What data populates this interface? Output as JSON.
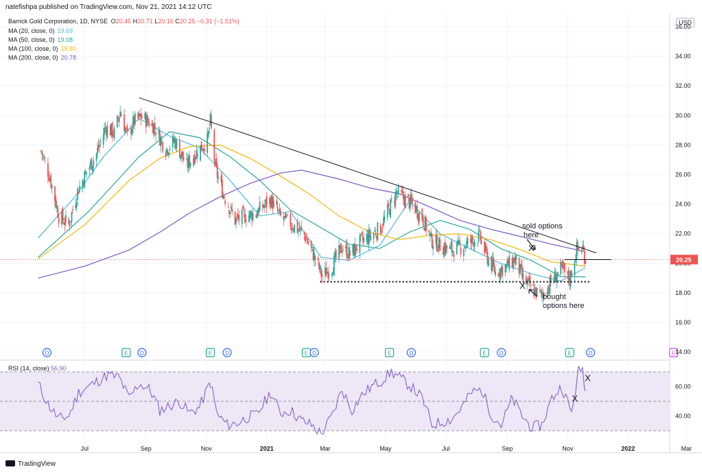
{
  "header": {
    "published": "natefishpa published on TradingView.com, Nov 21, 2021 14:12 UTC",
    "symbol": "Barrick Gold Corporation, 1D, NYSE",
    "ohlc": {
      "o_label": "O",
      "o": "20.45",
      "h_label": "H",
      "h": "20.71",
      "l_label": "L",
      "l": "20.15",
      "c_label": "C",
      "c": "20.25",
      "change": "−0.31 (−1.51%)"
    },
    "ma_lines": [
      {
        "label": "MA (20, close, 0)",
        "value": "19.69",
        "color": "#4cb6e3"
      },
      {
        "label": "MA (50, close, 0)",
        "value": "19.08",
        "color": "#26a69a"
      },
      {
        "label": "MA (100, close, 0)",
        "value": "19.80",
        "color": "#f5b700"
      },
      {
        "label": "MA (200, close, 0)",
        "value": "20.78",
        "color": "#7e57c2"
      }
    ]
  },
  "currency": "USD",
  "last_price": "20.25",
  "rsi_title": "RSI (14, close)",
  "rsi_value": "56.90",
  "footer": {
    "brand": "TradingView"
  },
  "colors": {
    "up": "#26a69a",
    "down": "#ef5350",
    "ma20": "#4cb6e3",
    "ma50": "#26a69a",
    "ma100": "#f5b700",
    "ma200": "#7e57c2",
    "rsi": "#7e57c2",
    "rsi_band": "#ede7f6",
    "price_tag": "#ef5350",
    "text_red": "#ef5350",
    "events_blue": "#2962ff",
    "events_green": "#26a69a",
    "events_pink": "#e040fb"
  },
  "annotations": {
    "sold": [
      "sold options",
      "here"
    ],
    "bought": [
      "bought",
      "options here"
    ],
    "x_mark": "X"
  },
  "chart_data": [
    {
      "type": "candlestick",
      "title": "Barrick Gold Corporation, 1D, NYSE",
      "x_ticks": [
        "Jul",
        "Sep",
        "Nov",
        "2021",
        "Mar",
        "May",
        "Jul",
        "Sep",
        "Nov",
        "2022",
        "Mar"
      ],
      "y_ticks": [
        "14.00",
        "16.00",
        "18.00",
        "20.00",
        "22.00",
        "24.00",
        "26.00",
        "28.00",
        "30.00",
        "32.00",
        "34.00",
        "36.00"
      ],
      "ylim": [
        14,
        36.4
      ],
      "close_path": [
        [
          "2020-05-18",
          27.6
        ],
        [
          "2020-05-27",
          25.8
        ],
        [
          "2020-06-05",
          23.2
        ],
        [
          "2020-06-15",
          22.6
        ],
        [
          "2020-06-24",
          24.9
        ],
        [
          "2020-07-03",
          26.2
        ],
        [
          "2020-07-13",
          27.4
        ],
        [
          "2020-07-22",
          29.2
        ],
        [
          "2020-07-31",
          28.8
        ],
        [
          "2020-08-06",
          30.3
        ],
        [
          "2020-08-13",
          28.6
        ],
        [
          "2020-08-20",
          29.6
        ],
        [
          "2020-08-28",
          29.9
        ],
        [
          "2020-09-09",
          29.3
        ],
        [
          "2020-09-21",
          27.7
        ],
        [
          "2020-09-30",
          28.3
        ],
        [
          "2020-10-12",
          26.6
        ],
        [
          "2020-10-23",
          27.6
        ],
        [
          "2020-11-02",
          28.3
        ],
        [
          "2020-11-05",
          29.6
        ],
        [
          "2020-11-10",
          26.4
        ],
        [
          "2020-11-18",
          24.7
        ],
        [
          "2020-11-30",
          22.9
        ],
        [
          "2020-12-10",
          23.2
        ],
        [
          "2020-12-21",
          23.4
        ],
        [
          "2021-01-05",
          24.3
        ],
        [
          "2021-01-15",
          23.1
        ],
        [
          "2021-01-27",
          22.6
        ],
        [
          "2021-02-08",
          21.9
        ],
        [
          "2021-02-19",
          20.3
        ],
        [
          "2021-02-26",
          19.1
        ],
        [
          "2021-03-08",
          19.8
        ],
        [
          "2021-03-18",
          21.1
        ],
        [
          "2021-03-26",
          20.6
        ],
        [
          "2021-04-07",
          21.5
        ],
        [
          "2021-04-16",
          21.9
        ],
        [
          "2021-04-26",
          22.4
        ],
        [
          "2021-05-04",
          23.6
        ],
        [
          "2021-05-12",
          24.8
        ],
        [
          "2021-05-19",
          24.4
        ],
        [
          "2021-05-28",
          24.0
        ],
        [
          "2021-06-07",
          23.1
        ],
        [
          "2021-06-16",
          21.6
        ],
        [
          "2021-06-25",
          21.2
        ],
        [
          "2021-07-06",
          20.9
        ],
        [
          "2021-07-16",
          21.1
        ],
        [
          "2021-07-27",
          21.5
        ],
        [
          "2021-08-04",
          21.8
        ],
        [
          "2021-08-11",
          20.5
        ],
        [
          "2021-08-20",
          19.4
        ],
        [
          "2021-08-31",
          19.8
        ],
        [
          "2021-09-09",
          20.3
        ],
        [
          "2021-09-17",
          18.9
        ],
        [
          "2021-09-28",
          18.1
        ],
        [
          "2021-10-06",
          17.8
        ],
        [
          "2021-10-15",
          18.7
        ],
        [
          "2021-10-25",
          19.6
        ],
        [
          "2021-11-03",
          18.9
        ],
        [
          "2021-11-10",
          20.9
        ],
        [
          "2021-11-16",
          21.0
        ],
        [
          "2021-11-19",
          20.25
        ]
      ],
      "ma_series": [
        {
          "name": "MA (20, close, 0)",
          "points": [
            [
              "2020-05-15",
              21.7
            ],
            [
              "2020-06-20",
              24.4
            ],
            [
              "2020-07-20",
              27.2
            ],
            [
              "2020-08-25",
              29.8
            ],
            [
              "2020-09-25",
              28.6
            ],
            [
              "2020-10-25",
              27.8
            ],
            [
              "2020-11-25",
              25.6
            ],
            [
              "2020-12-25",
              23.2
            ],
            [
              "2021-01-25",
              23.5
            ],
            [
              "2021-02-25",
              20.4
            ],
            [
              "2021-03-25",
              20.2
            ],
            [
              "2021-04-25",
              21.2
            ],
            [
              "2021-05-25",
              24.2
            ],
            [
              "2021-06-25",
              22.0
            ],
            [
              "2021-07-25",
              21.0
            ],
            [
              "2021-08-25",
              20.0
            ],
            [
              "2021-09-25",
              19.3
            ],
            [
              "2021-10-25",
              18.8
            ],
            [
              "2021-11-19",
              19.69
            ]
          ]
        },
        {
          "name": "MA (50, close, 0)",
          "points": [
            [
              "2020-05-15",
              20.4
            ],
            [
              "2020-07-05",
              23.5
            ],
            [
              "2020-08-25",
              27.2
            ],
            [
              "2020-09-25",
              28.9
            ],
            [
              "2020-10-25",
              28.5
            ],
            [
              "2020-11-25",
              27.2
            ],
            [
              "2020-12-25",
              25.6
            ],
            [
              "2021-01-25",
              23.6
            ],
            [
              "2021-02-25",
              22.4
            ],
            [
              "2021-03-25",
              21.3
            ],
            [
              "2021-04-25",
              21.0
            ],
            [
              "2021-05-25",
              22.1
            ],
            [
              "2021-06-25",
              22.9
            ],
            [
              "2021-07-25",
              22.3
            ],
            [
              "2021-08-25",
              21.0
            ],
            [
              "2021-09-25",
              20.2
            ],
            [
              "2021-10-25",
              19.1
            ],
            [
              "2021-11-19",
              19.08
            ]
          ]
        },
        {
          "name": "MA (100, close, 0)",
          "points": [
            [
              "2020-05-15",
              20.3
            ],
            [
              "2020-07-01",
              22.6
            ],
            [
              "2020-08-15",
              25.6
            ],
            [
              "2020-09-15",
              27.1
            ],
            [
              "2020-10-15",
              27.9
            ],
            [
              "2020-11-15",
              28.0
            ],
            [
              "2020-12-15",
              27.1
            ],
            [
              "2021-01-15",
              25.9
            ],
            [
              "2021-02-15",
              24.6
            ],
            [
              "2021-03-15",
              23.2
            ],
            [
              "2021-04-15",
              22.1
            ],
            [
              "2021-05-15",
              21.6
            ],
            [
              "2021-06-15",
              21.9
            ],
            [
              "2021-07-15",
              22.0
            ],
            [
              "2021-08-15",
              21.6
            ],
            [
              "2021-09-15",
              20.9
            ],
            [
              "2021-10-15",
              20.1
            ],
            [
              "2021-11-19",
              19.8
            ]
          ]
        },
        {
          "name": "MA (200, close, 0)",
          "points": [
            [
              "2020-05-15",
              19.0
            ],
            [
              "2020-07-01",
              19.8
            ],
            [
              "2020-08-15",
              20.9
            ],
            [
              "2020-09-15",
              22.1
            ],
            [
              "2020-10-15",
              23.4
            ],
            [
              "2020-11-15",
              24.5
            ],
            [
              "2020-12-15",
              25.4
            ],
            [
              "2021-01-15",
              26.1
            ],
            [
              "2021-02-05",
              26.3
            ],
            [
              "2021-03-15",
              25.7
            ],
            [
              "2021-04-15",
              25.1
            ],
            [
              "2021-05-15",
              24.7
            ],
            [
              "2021-06-15",
              23.8
            ],
            [
              "2021-07-15",
              22.9
            ],
            [
              "2021-08-15",
              22.3
            ],
            [
              "2021-09-15",
              21.8
            ],
            [
              "2021-10-15",
              21.3
            ],
            [
              "2021-11-19",
              20.78
            ]
          ]
        }
      ],
      "trend_line": [
        [
          "2020-08-25",
          31.2
        ],
        [
          "2021-11-30",
          20.7
        ]
      ],
      "support_line": {
        "from": "2021-02-24",
        "to": "2021-11-24",
        "value": 18.75
      },
      "last_price_line": 20.25,
      "resistance_segment": {
        "from": "2021-10-29",
        "to": "2021-12-15",
        "value": 20.25
      },
      "event_markers": [
        {
          "date": "2020-05-24",
          "type": "D"
        },
        {
          "date": "2020-08-12",
          "type": "E"
        },
        {
          "date": "2020-08-28",
          "type": "D"
        },
        {
          "date": "2020-11-05",
          "type": "E"
        },
        {
          "date": "2020-11-22",
          "type": "D"
        },
        {
          "date": "2021-02-10",
          "type": "E"
        },
        {
          "date": "2021-02-18",
          "type": "D"
        },
        {
          "date": "2021-05-05",
          "type": "E"
        },
        {
          "date": "2021-05-27",
          "type": "D"
        },
        {
          "date": "2021-08-09",
          "type": "E"
        },
        {
          "date": "2021-08-26",
          "type": "D"
        },
        {
          "date": "2021-11-03",
          "type": "E"
        },
        {
          "date": "2021-11-24",
          "type": "D"
        },
        {
          "date": "2022-02-16",
          "type": "E"
        }
      ]
    },
    {
      "type": "line",
      "title": "RSI (14, close)",
      "y_ticks": [
        "40.00",
        "60.00"
      ],
      "ylim": [
        25,
        75
      ],
      "band": [
        30,
        70
      ],
      "midline": 50,
      "current": 56.9,
      "path": [
        [
          "2020-05-15",
          62
        ],
        [
          "2020-05-25",
          48
        ],
        [
          "2020-06-05",
          38
        ],
        [
          "2020-06-15",
          40
        ],
        [
          "2020-06-25",
          56
        ],
        [
          "2020-07-05",
          60
        ],
        [
          "2020-07-15",
          64
        ],
        [
          "2020-07-25",
          68
        ],
        [
          "2020-08-05",
          66
        ],
        [
          "2020-08-15",
          52
        ],
        [
          "2020-08-25",
          62
        ],
        [
          "2020-09-05",
          58
        ],
        [
          "2020-09-15",
          44
        ],
        [
          "2020-09-25",
          47
        ],
        [
          "2020-10-05",
          50
        ],
        [
          "2020-10-15",
          42
        ],
        [
          "2020-10-25",
          46
        ],
        [
          "2020-11-05",
          63
        ],
        [
          "2020-11-12",
          41
        ],
        [
          "2020-11-22",
          34
        ],
        [
          "2020-12-02",
          35
        ],
        [
          "2020-12-12",
          39
        ],
        [
          "2020-12-22",
          41
        ],
        [
          "2021-01-05",
          56
        ],
        [
          "2021-01-15",
          42
        ],
        [
          "2021-01-25",
          44
        ],
        [
          "2021-02-05",
          37
        ],
        [
          "2021-02-15",
          34
        ],
        [
          "2021-02-25",
          28
        ],
        [
          "2021-03-08",
          40
        ],
        [
          "2021-03-18",
          58
        ],
        [
          "2021-03-28",
          44
        ],
        [
          "2021-04-07",
          54
        ],
        [
          "2021-04-17",
          60
        ],
        [
          "2021-04-27",
          64
        ],
        [
          "2021-05-07",
          70
        ],
        [
          "2021-05-17",
          65
        ],
        [
          "2021-05-27",
          60
        ],
        [
          "2021-06-07",
          52
        ],
        [
          "2021-06-17",
          34
        ],
        [
          "2021-06-27",
          36
        ],
        [
          "2021-07-07",
          38
        ],
        [
          "2021-07-17",
          46
        ],
        [
          "2021-07-27",
          56
        ],
        [
          "2021-08-06",
          58
        ],
        [
          "2021-08-16",
          41
        ],
        [
          "2021-08-26",
          34
        ],
        [
          "2021-09-06",
          52
        ],
        [
          "2021-09-16",
          40
        ],
        [
          "2021-09-26",
          32
        ],
        [
          "2021-10-06",
          34
        ],
        [
          "2021-10-16",
          52
        ],
        [
          "2021-10-26",
          60
        ],
        [
          "2021-11-05",
          42
        ],
        [
          "2021-11-12",
          71
        ],
        [
          "2021-11-16",
          72
        ],
        [
          "2021-11-19",
          56.9
        ]
      ],
      "marks": [
        [
          "2021-11-21",
          66
        ],
        [
          "2021-11-08",
          52
        ]
      ]
    }
  ]
}
